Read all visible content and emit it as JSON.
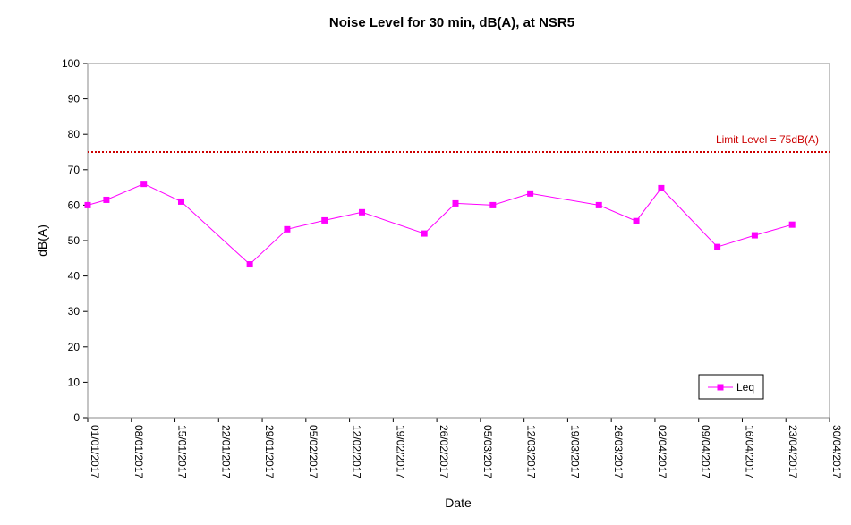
{
  "chart_data": {
    "type": "line",
    "title": "Noise Level for 30 min, dB(A), at NSR5",
    "xlabel": "Date",
    "ylabel": "dB(A)",
    "ylim": [
      0,
      100
    ],
    "yticks": [
      0,
      10,
      20,
      30,
      40,
      50,
      60,
      70,
      80,
      90,
      100
    ],
    "xlim": [
      "01/01/2017",
      "30/04/2017"
    ],
    "xticks": [
      "01/01/2017",
      "08/01/2017",
      "15/01/2017",
      "22/01/2017",
      "29/01/2017",
      "05/02/2017",
      "12/02/2017",
      "19/02/2017",
      "26/02/2017",
      "05/03/2017",
      "12/03/2017",
      "19/03/2017",
      "26/03/2017",
      "02/04/2017",
      "09/04/2017",
      "16/04/2017",
      "23/04/2017",
      "30/04/2017"
    ],
    "grid": false,
    "legend": {
      "position": "bottom-right",
      "entries": [
        "Leq"
      ]
    },
    "limit_line": {
      "value": 75,
      "label": "Limit Level = 75dB(A)",
      "color": "#cc0000"
    },
    "series": [
      {
        "name": "Leq",
        "color": "#ff00ff",
        "points": [
          {
            "x": "01/01/2017",
            "y": 60.0
          },
          {
            "x": "04/01/2017",
            "y": 61.5
          },
          {
            "x": "10/01/2017",
            "y": 66.0
          },
          {
            "x": "16/01/2017",
            "y": 61.0
          },
          {
            "x": "27/01/2017",
            "y": 43.3
          },
          {
            "x": "02/02/2017",
            "y": 53.2
          },
          {
            "x": "08/02/2017",
            "y": 55.7
          },
          {
            "x": "14/02/2017",
            "y": 58.0
          },
          {
            "x": "24/02/2017",
            "y": 52.0
          },
          {
            "x": "01/03/2017",
            "y": 60.5
          },
          {
            "x": "07/03/2017",
            "y": 60.0
          },
          {
            "x": "13/03/2017",
            "y": 63.3
          },
          {
            "x": "24/03/2017",
            "y": 60.0
          },
          {
            "x": "30/03/2017",
            "y": 55.5
          },
          {
            "x": "03/04/2017",
            "y": 64.8
          },
          {
            "x": "12/04/2017",
            "y": 48.2
          },
          {
            "x": "18/04/2017",
            "y": 51.5
          },
          {
            "x": "24/04/2017",
            "y": 54.5
          }
        ]
      }
    ]
  }
}
